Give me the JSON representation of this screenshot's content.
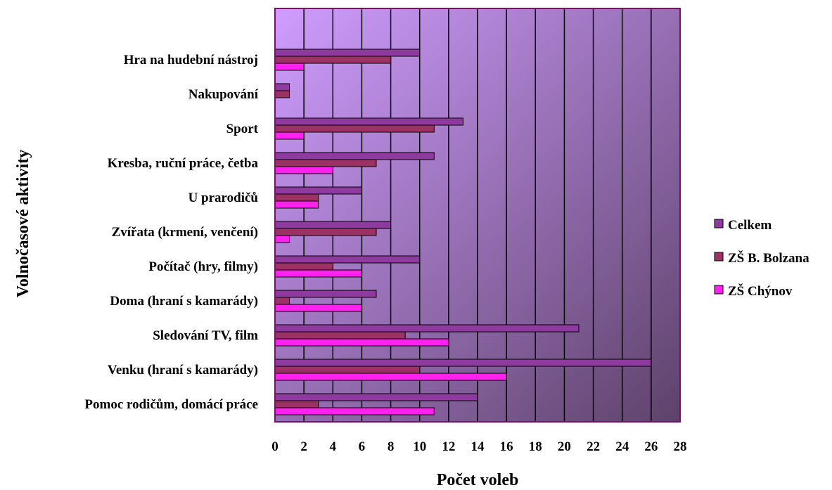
{
  "chart_data": {
    "type": "bar",
    "orientation": "horizontal",
    "xlabel": "Počet voleb",
    "ylabel": "Volnočasové aktivity",
    "xlim": [
      0,
      28
    ],
    "x_ticks": [
      0,
      2,
      4,
      6,
      8,
      10,
      12,
      14,
      16,
      18,
      20,
      22,
      24,
      26,
      28
    ],
    "grid": true,
    "legend_position": "right",
    "categories": [
      "Hra na hudební nástroj",
      "Nakupování",
      "Sport",
      "Kresba, ruční práce, četba",
      "U  prarodičů",
      "Zvířata (krmení, venčení)",
      "Počítač (hry, filmy)",
      "Doma (hraní s kamarády)",
      "Sledování TV, film",
      "Venku (hraní s kamarády)",
      "Pomoc rodičům, domácí práce"
    ],
    "series": [
      {
        "name": "Celkem",
        "color": "#8e3a9e",
        "values": [
          10,
          1,
          13,
          11,
          6,
          8,
          10,
          7,
          21,
          26,
          14
        ]
      },
      {
        "name": "ZŠ B. Bolzana",
        "color": "#9b3263",
        "values": [
          8,
          1,
          11,
          7,
          3,
          7,
          4,
          1,
          9,
          10,
          3
        ]
      },
      {
        "name": "ZŠ Chýnov",
        "color": "#ff22ee",
        "values": [
          2,
          0,
          2,
          4,
          3,
          1,
          6,
          6,
          12,
          16,
          11
        ]
      }
    ],
    "colors": {
      "plot_bg_top_left": "#cf9dff",
      "plot_bg_bottom_right": "#5e426a",
      "gridline": "#000000",
      "plot_border": "#7a0f6e"
    }
  }
}
